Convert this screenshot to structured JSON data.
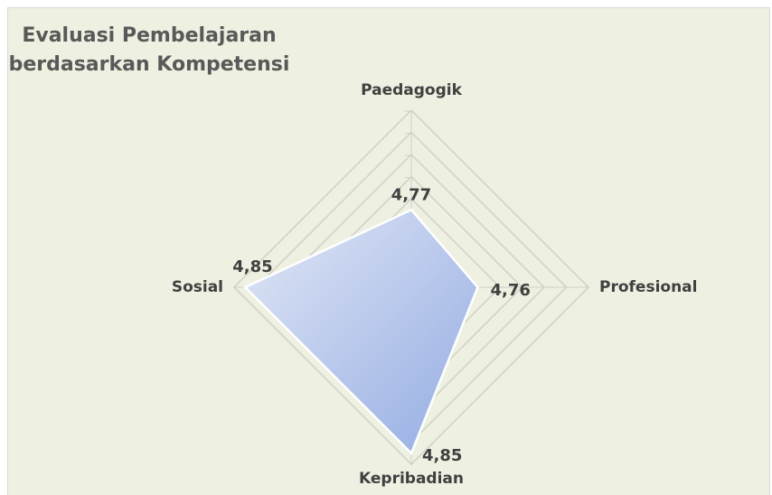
{
  "chart_data": {
    "type": "radar",
    "title": "Evaluasi Pembelajaran berdasarkan Kompetensi",
    "categories": [
      "Paedagogik",
      "Profesional",
      "Kepribadian",
      "Sosial"
    ],
    "values": [
      4.77,
      4.76,
      4.85,
      4.85
    ],
    "value_labels": [
      "4,77",
      "4,76",
      "4,85",
      "4,85"
    ],
    "color": "#a9bde9",
    "ylim": [
      4.7,
      4.86
    ],
    "yticks": [
      {
        "value": 4.7,
        "label": "..."
      },
      {
        "value": 4.72,
        "label": "..."
      },
      {
        "value": 4.74,
        "label": "..."
      },
      {
        "value": 4.76,
        "label": "..."
      },
      {
        "value": 4.78,
        "label": "..."
      },
      {
        "value": 4.8,
        "label": "..."
      },
      {
        "value": 4.82,
        "label": "..."
      },
      {
        "value": 4.84,
        "label": "..."
      },
      {
        "value": 4.86,
        "label": "..."
      }
    ],
    "grid": true
  }
}
